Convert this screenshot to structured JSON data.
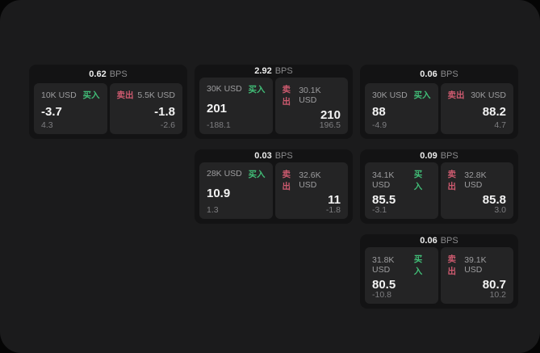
{
  "labels": {
    "bps_unit": "BPS",
    "buy": "买入",
    "sell": "卖出"
  },
  "colors": {
    "buy": "#41bd77",
    "sell": "#cd5a6f",
    "surface": "#1b1b1c",
    "card": "#131314",
    "tile": "#242425"
  },
  "cards": [
    {
      "bps": "0.62",
      "buy": {
        "amount": "10K USD",
        "price": "-3.7",
        "delta": "4.3"
      },
      "sell": {
        "amount": "5.5K USD",
        "price": "-1.8",
        "delta": "-2.6"
      }
    },
    {
      "bps": "2.92",
      "buy": {
        "amount": "30K USD",
        "price": "201",
        "delta": "-188.1"
      },
      "sell": {
        "amount": "30.1K USD",
        "price": "210",
        "delta": "196.5"
      }
    },
    {
      "bps": "0.06",
      "buy": {
        "amount": "30K USD",
        "price": "88",
        "delta": "-4.9"
      },
      "sell": {
        "amount": "30K USD",
        "price": "88.2",
        "delta": "4.7"
      }
    },
    {
      "bps": "0.03",
      "buy": {
        "amount": "28K USD",
        "price": "10.9",
        "delta": "1.3"
      },
      "sell": {
        "amount": "32.6K USD",
        "price": "11",
        "delta": "-1.8"
      }
    },
    {
      "bps": "0.09",
      "buy": {
        "amount": "34.1K USD",
        "price": "85.5",
        "delta": "-3.1"
      },
      "sell": {
        "amount": "32.8K USD",
        "price": "85.8",
        "delta": "3.0"
      }
    },
    {
      "bps": "0.06",
      "buy": {
        "amount": "31.8K USD",
        "price": "80.5",
        "delta": "-10.8"
      },
      "sell": {
        "amount": "39.1K USD",
        "price": "80.7",
        "delta": "10.2"
      }
    }
  ]
}
